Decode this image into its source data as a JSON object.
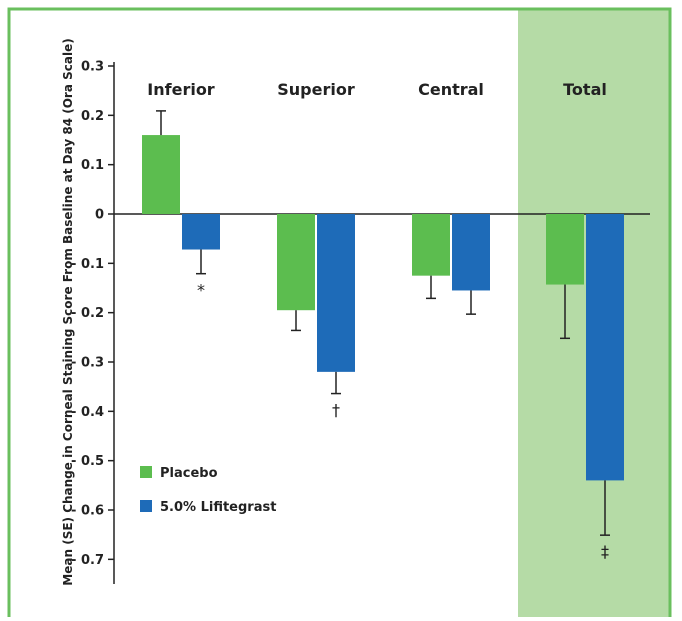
{
  "chart_data": {
    "type": "bar",
    "ylabel": "Mean (SE) Change in Corneal Staining Score From Baseline at Day 84 (Ora Scale)",
    "ylim": [
      -0.75,
      0.3
    ],
    "yticks": [
      "0.3",
      "0.2",
      "0.1",
      "0",
      "- 0.1",
      "- 0.2",
      "- 0.3",
      "- 0.4",
      "- 0.5",
      "- 0.6",
      "- 0.7"
    ],
    "ytick_values": [
      0.3,
      0.2,
      0.1,
      0,
      -0.1,
      -0.2,
      -0.3,
      -0.4,
      -0.5,
      -0.6,
      -0.7
    ],
    "categories": [
      "Inferior",
      "Superior",
      "Central",
      "Total"
    ],
    "highlighted_category": "Total",
    "series": [
      {
        "name": "Placebo",
        "color": "#5cbd4f",
        "values": [
          0.16,
          -0.195,
          -0.125,
          -0.143
        ],
        "errors": [
          0.049,
          0.041,
          0.046,
          0.109
        ]
      },
      {
        "name": "5.0% Lifitegrast",
        "color": "#1e6bb8",
        "values": [
          -0.072,
          -0.32,
          -0.155,
          -0.54
        ],
        "errors": [
          0.049,
          0.044,
          0.048,
          0.111
        ]
      }
    ],
    "significance_marks": [
      {
        "category": "Inferior",
        "series": "5.0% Lifitegrast",
        "mark": "*"
      },
      {
        "category": "Superior",
        "series": "5.0% Lifitegrast",
        "mark": "†"
      },
      {
        "category": "Total",
        "series": "5.0% Lifitegrast",
        "mark": "‡"
      }
    ],
    "legend": {
      "position": "bottom-left",
      "items": [
        "Placebo",
        "5.0% Lifitegrast"
      ]
    },
    "colors": {
      "frame": "#6abf5e",
      "highlight_band": "#b5dba6",
      "axis": "#222222"
    }
  }
}
